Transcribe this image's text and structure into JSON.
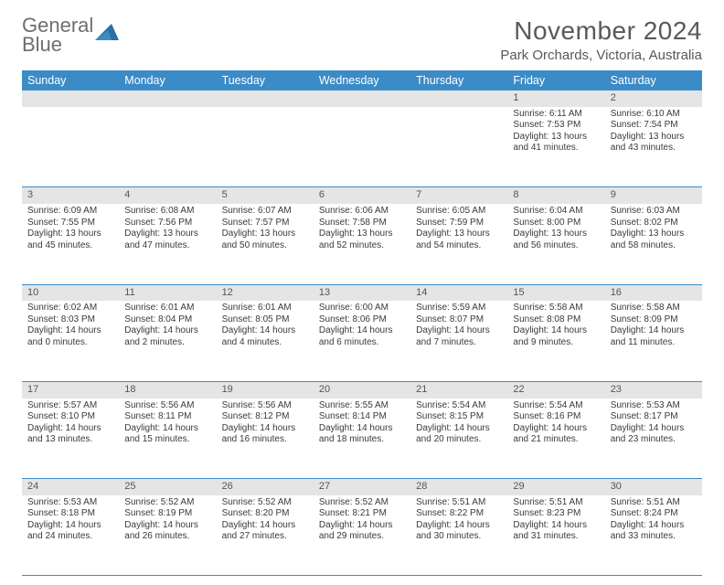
{
  "brand": {
    "line1": "General",
    "line2": "Blue"
  },
  "title": "November 2024",
  "location": "Park Orchards, Victoria, Australia",
  "day_headers": [
    "Sunday",
    "Monday",
    "Tuesday",
    "Wednesday",
    "Thursday",
    "Friday",
    "Saturday"
  ],
  "colors": {
    "accent": "#3b8bc6",
    "header_text": "#58595b",
    "daynum_bg": "#e5e5e5"
  },
  "weeks": [
    [
      null,
      null,
      null,
      null,
      null,
      {
        "n": "1",
        "sr": "Sunrise: 6:11 AM",
        "ss": "Sunset: 7:53 PM",
        "d1": "Daylight: 13 hours",
        "d2": "and 41 minutes."
      },
      {
        "n": "2",
        "sr": "Sunrise: 6:10 AM",
        "ss": "Sunset: 7:54 PM",
        "d1": "Daylight: 13 hours",
        "d2": "and 43 minutes."
      }
    ],
    [
      {
        "n": "3",
        "sr": "Sunrise: 6:09 AM",
        "ss": "Sunset: 7:55 PM",
        "d1": "Daylight: 13 hours",
        "d2": "and 45 minutes."
      },
      {
        "n": "4",
        "sr": "Sunrise: 6:08 AM",
        "ss": "Sunset: 7:56 PM",
        "d1": "Daylight: 13 hours",
        "d2": "and 47 minutes."
      },
      {
        "n": "5",
        "sr": "Sunrise: 6:07 AM",
        "ss": "Sunset: 7:57 PM",
        "d1": "Daylight: 13 hours",
        "d2": "and 50 minutes."
      },
      {
        "n": "6",
        "sr": "Sunrise: 6:06 AM",
        "ss": "Sunset: 7:58 PM",
        "d1": "Daylight: 13 hours",
        "d2": "and 52 minutes."
      },
      {
        "n": "7",
        "sr": "Sunrise: 6:05 AM",
        "ss": "Sunset: 7:59 PM",
        "d1": "Daylight: 13 hours",
        "d2": "and 54 minutes."
      },
      {
        "n": "8",
        "sr": "Sunrise: 6:04 AM",
        "ss": "Sunset: 8:00 PM",
        "d1": "Daylight: 13 hours",
        "d2": "and 56 minutes."
      },
      {
        "n": "9",
        "sr": "Sunrise: 6:03 AM",
        "ss": "Sunset: 8:02 PM",
        "d1": "Daylight: 13 hours",
        "d2": "and 58 minutes."
      }
    ],
    [
      {
        "n": "10",
        "sr": "Sunrise: 6:02 AM",
        "ss": "Sunset: 8:03 PM",
        "d1": "Daylight: 14 hours",
        "d2": "and 0 minutes."
      },
      {
        "n": "11",
        "sr": "Sunrise: 6:01 AM",
        "ss": "Sunset: 8:04 PM",
        "d1": "Daylight: 14 hours",
        "d2": "and 2 minutes."
      },
      {
        "n": "12",
        "sr": "Sunrise: 6:01 AM",
        "ss": "Sunset: 8:05 PM",
        "d1": "Daylight: 14 hours",
        "d2": "and 4 minutes."
      },
      {
        "n": "13",
        "sr": "Sunrise: 6:00 AM",
        "ss": "Sunset: 8:06 PM",
        "d1": "Daylight: 14 hours",
        "d2": "and 6 minutes."
      },
      {
        "n": "14",
        "sr": "Sunrise: 5:59 AM",
        "ss": "Sunset: 8:07 PM",
        "d1": "Daylight: 14 hours",
        "d2": "and 7 minutes."
      },
      {
        "n": "15",
        "sr": "Sunrise: 5:58 AM",
        "ss": "Sunset: 8:08 PM",
        "d1": "Daylight: 14 hours",
        "d2": "and 9 minutes."
      },
      {
        "n": "16",
        "sr": "Sunrise: 5:58 AM",
        "ss": "Sunset: 8:09 PM",
        "d1": "Daylight: 14 hours",
        "d2": "and 11 minutes."
      }
    ],
    [
      {
        "n": "17",
        "sr": "Sunrise: 5:57 AM",
        "ss": "Sunset: 8:10 PM",
        "d1": "Daylight: 14 hours",
        "d2": "and 13 minutes."
      },
      {
        "n": "18",
        "sr": "Sunrise: 5:56 AM",
        "ss": "Sunset: 8:11 PM",
        "d1": "Daylight: 14 hours",
        "d2": "and 15 minutes."
      },
      {
        "n": "19",
        "sr": "Sunrise: 5:56 AM",
        "ss": "Sunset: 8:12 PM",
        "d1": "Daylight: 14 hours",
        "d2": "and 16 minutes."
      },
      {
        "n": "20",
        "sr": "Sunrise: 5:55 AM",
        "ss": "Sunset: 8:14 PM",
        "d1": "Daylight: 14 hours",
        "d2": "and 18 minutes."
      },
      {
        "n": "21",
        "sr": "Sunrise: 5:54 AM",
        "ss": "Sunset: 8:15 PM",
        "d1": "Daylight: 14 hours",
        "d2": "and 20 minutes."
      },
      {
        "n": "22",
        "sr": "Sunrise: 5:54 AM",
        "ss": "Sunset: 8:16 PM",
        "d1": "Daylight: 14 hours",
        "d2": "and 21 minutes."
      },
      {
        "n": "23",
        "sr": "Sunrise: 5:53 AM",
        "ss": "Sunset: 8:17 PM",
        "d1": "Daylight: 14 hours",
        "d2": "and 23 minutes."
      }
    ],
    [
      {
        "n": "24",
        "sr": "Sunrise: 5:53 AM",
        "ss": "Sunset: 8:18 PM",
        "d1": "Daylight: 14 hours",
        "d2": "and 24 minutes."
      },
      {
        "n": "25",
        "sr": "Sunrise: 5:52 AM",
        "ss": "Sunset: 8:19 PM",
        "d1": "Daylight: 14 hours",
        "d2": "and 26 minutes."
      },
      {
        "n": "26",
        "sr": "Sunrise: 5:52 AM",
        "ss": "Sunset: 8:20 PM",
        "d1": "Daylight: 14 hours",
        "d2": "and 27 minutes."
      },
      {
        "n": "27",
        "sr": "Sunrise: 5:52 AM",
        "ss": "Sunset: 8:21 PM",
        "d1": "Daylight: 14 hours",
        "d2": "and 29 minutes."
      },
      {
        "n": "28",
        "sr": "Sunrise: 5:51 AM",
        "ss": "Sunset: 8:22 PM",
        "d1": "Daylight: 14 hours",
        "d2": "and 30 minutes."
      },
      {
        "n": "29",
        "sr": "Sunrise: 5:51 AM",
        "ss": "Sunset: 8:23 PM",
        "d1": "Daylight: 14 hours",
        "d2": "and 31 minutes."
      },
      {
        "n": "30",
        "sr": "Sunrise: 5:51 AM",
        "ss": "Sunset: 8:24 PM",
        "d1": "Daylight: 14 hours",
        "d2": "and 33 minutes."
      }
    ]
  ]
}
